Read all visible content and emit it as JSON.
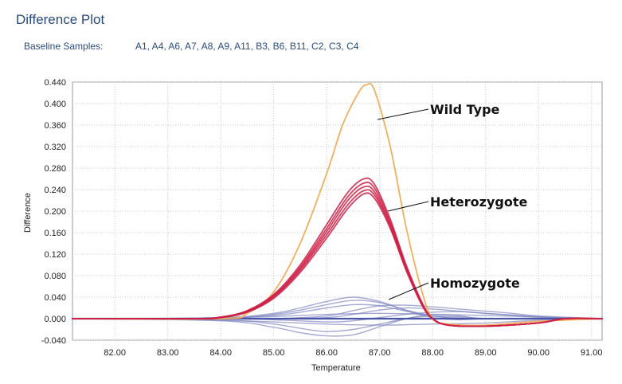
{
  "header": {
    "title": "Difference Plot",
    "baseline_label": "Baseline Samples:",
    "baseline_samples": "A1, A4, A6, A7, A8, A9, A11, B3, B6, B11, C2, C3, C4"
  },
  "chart_data": {
    "type": "line",
    "title": "Difference Plot",
    "xlabel": "Temperature",
    "ylabel": "Difference",
    "xlim": [
      81.2,
      91.2
    ],
    "ylim": [
      -0.04,
      0.44
    ],
    "grid": true,
    "x_ticks": [
      "82.00",
      "83.00",
      "84.00",
      "85.00",
      "86.00",
      "87.00",
      "88.00",
      "89.00",
      "90.00",
      "91.00"
    ],
    "y_ticks": [
      "0.440",
      "0.400",
      "0.360",
      "0.320",
      "0.280",
      "0.240",
      "0.200",
      "0.160",
      "0.120",
      "0.080",
      "0.040",
      "0.000",
      "-0.040"
    ],
    "colors": {
      "wild_type": "#f0b060",
      "heterozygote": "#cc1f45",
      "homozygote": "#7f86c0",
      "baseline": "#4a55a8"
    },
    "series": [
      {
        "name": "Wild Type",
        "group": "wild_type",
        "x": [
          81.2,
          84.0,
          84.5,
          85.0,
          85.5,
          86.0,
          86.3,
          86.6,
          86.75,
          86.9,
          87.2,
          87.5,
          87.8,
          88.0,
          88.3,
          89.0,
          90.0,
          91.2
        ],
        "y": [
          0.0,
          0.0,
          0.01,
          0.05,
          0.14,
          0.27,
          0.36,
          0.42,
          0.435,
          0.425,
          0.32,
          0.17,
          0.05,
          0.0,
          -0.01,
          -0.012,
          -0.005,
          0.0
        ]
      },
      {
        "name": "Heterozygote 1",
        "group": "heterozygote",
        "x": [
          81.2,
          83.5,
          84.0,
          84.5,
          85.0,
          85.5,
          86.0,
          86.4,
          86.7,
          86.9,
          87.2,
          87.5,
          87.8,
          88.0,
          88.3,
          89.0,
          90.0,
          90.5,
          91.2
        ],
        "y": [
          0.0,
          0.0,
          0.003,
          0.015,
          0.045,
          0.1,
          0.175,
          0.235,
          0.26,
          0.25,
          0.185,
          0.1,
          0.03,
          0.0,
          -0.012,
          -0.014,
          -0.008,
          0.0,
          0.0
        ]
      },
      {
        "name": "Heterozygote 2",
        "group": "heterozygote",
        "x": [
          81.2,
          83.5,
          84.0,
          84.5,
          85.0,
          85.5,
          86.0,
          86.4,
          86.7,
          86.9,
          87.2,
          87.5,
          87.8,
          88.0,
          88.3,
          89.0,
          90.0,
          90.5,
          91.2
        ],
        "y": [
          0.0,
          0.0,
          0.003,
          0.014,
          0.043,
          0.096,
          0.168,
          0.227,
          0.252,
          0.243,
          0.18,
          0.097,
          0.028,
          0.0,
          -0.012,
          -0.014,
          -0.008,
          0.0,
          0.0
        ]
      },
      {
        "name": "Heterozygote 3",
        "group": "heterozygote",
        "x": [
          81.2,
          83.5,
          84.0,
          84.5,
          85.0,
          85.5,
          86.0,
          86.4,
          86.7,
          86.9,
          87.2,
          87.5,
          87.8,
          88.0,
          88.3,
          89.0,
          90.0,
          90.5,
          91.2
        ],
        "y": [
          0.0,
          0.0,
          0.003,
          0.014,
          0.042,
          0.093,
          0.162,
          0.22,
          0.245,
          0.236,
          0.176,
          0.095,
          0.027,
          0.0,
          -0.012,
          -0.014,
          -0.008,
          0.0,
          0.0
        ]
      },
      {
        "name": "Heterozygote 4",
        "group": "heterozygote",
        "x": [
          81.2,
          83.5,
          84.0,
          84.5,
          85.0,
          85.5,
          86.0,
          86.4,
          86.7,
          86.9,
          87.2,
          87.5,
          87.8,
          88.0,
          88.3,
          89.0,
          90.0,
          90.5,
          91.2
        ],
        "y": [
          0.0,
          0.0,
          0.002,
          0.013,
          0.04,
          0.09,
          0.156,
          0.212,
          0.238,
          0.23,
          0.172,
          0.093,
          0.026,
          0.0,
          -0.012,
          -0.014,
          -0.008,
          0.0,
          0.0
        ]
      },
      {
        "name": "Heterozygote 5",
        "group": "heterozygote",
        "x": [
          81.2,
          83.5,
          84.0,
          84.5,
          85.0,
          85.5,
          86.0,
          86.4,
          86.7,
          86.9,
          87.2,
          87.5,
          87.8,
          88.0,
          88.3,
          89.0,
          90.0,
          90.5,
          91.2
        ],
        "y": [
          0.0,
          0.0,
          0.002,
          0.012,
          0.038,
          0.086,
          0.15,
          0.205,
          0.232,
          0.224,
          0.168,
          0.09,
          0.025,
          0.0,
          -0.012,
          -0.014,
          -0.008,
          0.0,
          0.0
        ]
      },
      {
        "name": "Homozygote 1",
        "group": "homozygote",
        "x": [
          81.2,
          84.0,
          85.0,
          85.5,
          86.0,
          86.5,
          87.0,
          87.5,
          88.0,
          88.5,
          89.0,
          90.0,
          91.2
        ],
        "y": [
          0.0,
          0.002,
          0.01,
          0.02,
          0.032,
          0.04,
          0.032,
          0.015,
          0.002,
          -0.002,
          0.0,
          0.0,
          0.0
        ]
      },
      {
        "name": "Homozygote 2",
        "group": "homozygote",
        "x": [
          81.2,
          84.0,
          85.0,
          85.5,
          86.0,
          86.5,
          87.0,
          87.5,
          88.0,
          88.5,
          89.0,
          90.0,
          91.2
        ],
        "y": [
          0.0,
          0.001,
          0.008,
          0.016,
          0.026,
          0.034,
          0.03,
          0.016,
          0.005,
          0.0,
          0.0,
          0.0,
          0.0
        ]
      },
      {
        "name": "Homozygote 3",
        "group": "homozygote",
        "x": [
          81.2,
          84.0,
          85.0,
          85.5,
          86.0,
          86.5,
          87.0,
          87.5,
          88.0,
          88.5,
          89.0,
          90.0,
          91.2
        ],
        "y": [
          0.0,
          0.001,
          0.006,
          0.012,
          0.02,
          0.026,
          0.024,
          0.014,
          0.005,
          0.001,
          0.0,
          0.0,
          0.0
        ]
      },
      {
        "name": "Homozygote 4",
        "group": "homozygote",
        "x": [
          81.2,
          84.0,
          85.0,
          85.5,
          86.0,
          86.5,
          87.0,
          87.5,
          88.0,
          88.5,
          89.0,
          90.0,
          91.2
        ],
        "y": [
          0.0,
          -0.002,
          -0.01,
          -0.018,
          -0.024,
          -0.02,
          -0.01,
          0.0,
          0.005,
          0.003,
          0.0,
          0.0,
          0.0
        ]
      },
      {
        "name": "Homozygote 5",
        "group": "homozygote",
        "x": [
          81.2,
          84.0,
          85.0,
          85.5,
          86.0,
          86.5,
          87.0,
          87.5,
          88.0,
          88.5,
          89.0,
          90.0,
          91.2
        ],
        "y": [
          0.0,
          -0.004,
          -0.016,
          -0.026,
          -0.032,
          -0.03,
          -0.015,
          0.0,
          0.008,
          0.005,
          0.0,
          0.0,
          0.0
        ]
      },
      {
        "name": "Homozygote 6",
        "group": "homozygote",
        "x": [
          81.2,
          84.0,
          85.0,
          86.0,
          86.5,
          87.0,
          87.5,
          88.0,
          88.5,
          89.0,
          89.5,
          90.0,
          91.2
        ],
        "y": [
          0.0,
          0.0,
          0.0,
          0.005,
          0.015,
          0.024,
          0.025,
          0.022,
          0.018,
          0.014,
          0.01,
          0.005,
          0.0
        ]
      },
      {
        "name": "Homozygote 7",
        "group": "homozygote",
        "x": [
          81.2,
          84.0,
          85.0,
          86.0,
          86.5,
          87.0,
          87.5,
          88.0,
          88.5,
          89.0,
          89.5,
          90.0,
          91.2
        ],
        "y": [
          0.0,
          0.0,
          0.0,
          0.002,
          0.008,
          0.016,
          0.02,
          0.018,
          0.014,
          0.01,
          0.006,
          0.003,
          0.0
        ]
      },
      {
        "name": "Homozygote 8",
        "group": "homozygote",
        "x": [
          81.2,
          84.0,
          85.0,
          86.0,
          86.5,
          87.0,
          87.5,
          88.0,
          88.5,
          89.0,
          90.0,
          90.5,
          91.2
        ],
        "y": [
          0.0,
          0.0,
          -0.002,
          -0.006,
          -0.004,
          0.002,
          0.008,
          0.012,
          0.013,
          0.01,
          0.004,
          0.0,
          0.0
        ]
      },
      {
        "name": "Homozygote 9",
        "group": "homozygote",
        "x": [
          81.2,
          83.0,
          84.0,
          85.0,
          86.0,
          87.0,
          88.0,
          89.0,
          90.0,
          91.2
        ],
        "y": [
          0.0,
          0.0,
          -0.003,
          -0.006,
          -0.01,
          -0.012,
          -0.01,
          -0.008,
          -0.003,
          0.0
        ]
      },
      {
        "name": "Homozygote 10",
        "group": "homozygote",
        "x": [
          81.2,
          83.0,
          84.0,
          85.0,
          86.0,
          87.0,
          88.0,
          89.0,
          90.0,
          91.2
        ],
        "y": [
          0.0,
          0.0,
          0.002,
          0.004,
          0.008,
          0.01,
          0.008,
          0.006,
          0.003,
          0.0
        ]
      },
      {
        "name": "Baseline",
        "group": "baseline",
        "x": [
          81.2,
          91.2
        ],
        "y": [
          0.0,
          0.0
        ]
      }
    ],
    "annotations": [
      {
        "text": "Wild Type",
        "x": 87.0,
        "y": 0.385
      },
      {
        "text": "Heterozygote",
        "x": 87.15,
        "y": 0.2
      },
      {
        "text": "Homozygote",
        "x": 87.15,
        "y": 0.033
      }
    ]
  }
}
